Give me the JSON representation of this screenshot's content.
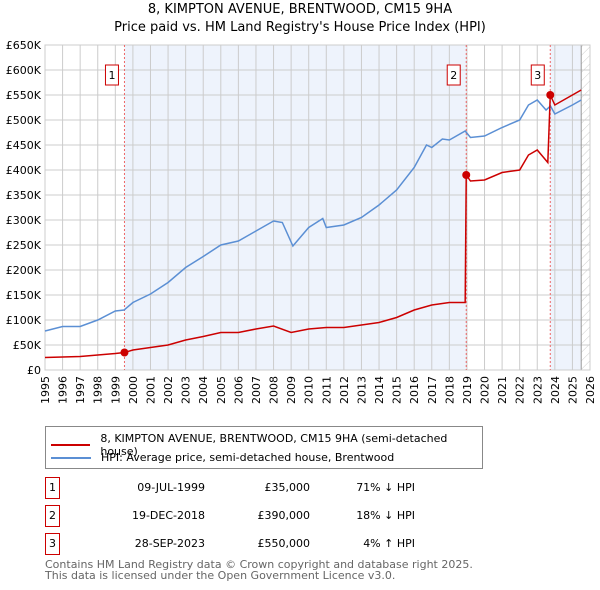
{
  "chart_data": {
    "type": "line",
    "title": "8, KIMPTON AVENUE, BRENTWOOD, CM15 9HA",
    "subtitle": "Price paid vs. HM Land Registry's House Price Index (HPI)",
    "xlim": [
      1995,
      2026
    ],
    "ylim": [
      0,
      650000
    ],
    "x_ticks": [
      "1995",
      "1996",
      "1997",
      "1998",
      "1999",
      "2000",
      "2001",
      "2002",
      "2003",
      "2004",
      "2005",
      "2006",
      "2007",
      "2008",
      "2009",
      "2010",
      "2011",
      "2012",
      "2013",
      "2014",
      "2015",
      "2016",
      "2017",
      "2018",
      "2019",
      "2020",
      "2021",
      "2022",
      "2023",
      "2024",
      "2025",
      "2026"
    ],
    "y_ticks": [
      "£0",
      "£50K",
      "£100K",
      "£150K",
      "£200K",
      "£250K",
      "£300K",
      "£350K",
      "£400K",
      "£450K",
      "£500K",
      "£550K",
      "£600K",
      "£650K"
    ],
    "grid": true,
    "series": [
      {
        "name": "8, KIMPTON AVENUE, BRENTWOOD, CM15 9HA (semi-detached house)",
        "color": "#cc0000",
        "x": [
          1995,
          1996,
          1997,
          1998,
          1999,
          1999.52,
          2000,
          2001,
          2002,
          2003,
          2004,
          2005,
          2006,
          2007,
          2008,
          2009,
          2010,
          2011,
          2012,
          2013,
          2014,
          2015,
          2016,
          2017,
          2018,
          2018.9,
          2018.96,
          2019.2,
          2020,
          2021,
          2022,
          2022.5,
          2023,
          2023.6,
          2023.74,
          2024,
          2025,
          2025.5
        ],
        "y": [
          25000,
          26000,
          27000,
          30000,
          33000,
          35000,
          40000,
          45000,
          50000,
          60000,
          67000,
          75000,
          75000,
          82000,
          88000,
          75000,
          82000,
          85000,
          85000,
          90000,
          95000,
          105000,
          120000,
          130000,
          135000,
          135000,
          390000,
          378000,
          380000,
          395000,
          400000,
          430000,
          440000,
          415000,
          550000,
          530000,
          550000,
          560000
        ]
      },
      {
        "name": "HPI: Average price, semi-detached house, Brentwood",
        "color": "#5b8fd4",
        "x": [
          1995,
          1996,
          1997,
          1998,
          1999,
          1999.5,
          2000,
          2001,
          2002,
          2003,
          2004,
          2005,
          2006,
          2007,
          2008,
          2008.5,
          2009.1,
          2010,
          2010.8,
          2011,
          2012,
          2013,
          2014,
          2015,
          2016,
          2016.7,
          2017,
          2017.6,
          2018,
          2018.9,
          2019.2,
          2020,
          2021,
          2022,
          2022.5,
          2023,
          2023.5,
          2023.75,
          2024,
          2025,
          2025.5
        ],
        "y": [
          78000,
          87000,
          87000,
          100000,
          118000,
          120000,
          135000,
          152000,
          175000,
          205000,
          227000,
          250000,
          258000,
          278000,
          298000,
          295000,
          248000,
          285000,
          303000,
          285000,
          290000,
          305000,
          330000,
          360000,
          405000,
          450000,
          445000,
          462000,
          460000,
          478000,
          465000,
          468000,
          485000,
          500000,
          530000,
          540000,
          520000,
          528000,
          512000,
          530000,
          540000
        ]
      }
    ],
    "sales": [
      {
        "num": "1",
        "x": 1999.52,
        "y": 35000,
        "date": "09-JUL-1999",
        "price": "£35,000",
        "hpi": "71% ↓ HPI"
      },
      {
        "num": "2",
        "x": 2018.96,
        "y": 390000,
        "date": "19-DEC-2018",
        "price": "£390,000",
        "hpi": "18% ↓ HPI"
      },
      {
        "num": "3",
        "x": 2023.74,
        "y": 550000,
        "date": "28-SEP-2023",
        "price": "£550,000",
        "hpi": "4% ↑ HPI"
      }
    ],
    "legend_placement": "below"
  },
  "footer": {
    "line1": "Contains HM Land Registry data © Crown copyright and database right 2025.",
    "line2": "This data is licensed under the Open Government Licence v3.0."
  }
}
